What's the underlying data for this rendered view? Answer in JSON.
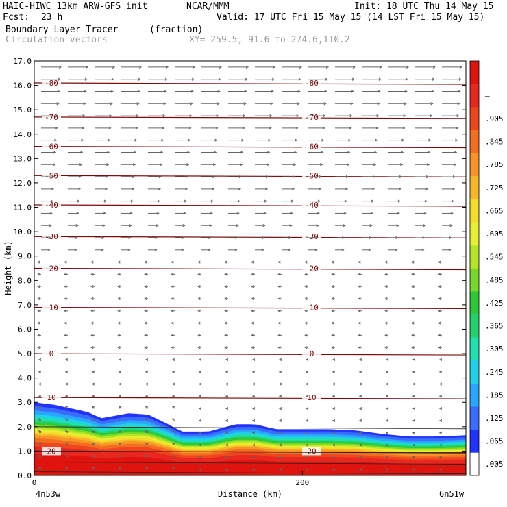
{
  "header": {
    "model": "HAIC-HIWC 13km ARW-GFS init",
    "org": "NCAR/MMM",
    "init": "Init: 18 UTC Thu 14 May 15",
    "fcst_label": "Fcst:",
    "fcst_value": "23 h",
    "valid": "Valid: 17 UTC Fri 15 May 15 (14 LST Fri 15 May 15)",
    "field": "Boundary Layer Tracer",
    "field_units": "(fraction)",
    "overlay": "Circulation vectors",
    "xy": "XY= 259.5, 91.6 to 274.6,110.2"
  },
  "chart_data": {
    "type": "heatmap",
    "title": "Boundary Layer Tracer",
    "units": "(fraction)",
    "xlabel": "Distance (km)",
    "ylabel": "Height (km)",
    "xlim": [
      0,
      322
    ],
    "ylim": [
      0,
      17
    ],
    "x_ticks": [
      "0",
      "200"
    ],
    "y_ticks": [
      "0.0",
      "1.0",
      "2.0",
      "3.0",
      "4.0",
      "5.0",
      "6.0",
      "7.0",
      "8.0",
      "9.0",
      "10.0",
      "11.0",
      "12.0",
      "13.0",
      "14.0",
      "15.0",
      "16.0",
      "17.0"
    ],
    "endpoints": {
      "left": "4n53w",
      "right": "6n51w"
    },
    "colorbar": {
      "labels": [
        ".005",
        ".065",
        ".125",
        ".185",
        ".245",
        ".305",
        ".365",
        ".425",
        ".485",
        ".545",
        ".605",
        ".665",
        ".725",
        ".785",
        ".845",
        ".905",
        "–"
      ],
      "colors": [
        "#ffffff",
        "#2233ff",
        "#3a6cff",
        "#2aa6ff",
        "#1fd2e8",
        "#20e0b0",
        "#22d26a",
        "#2dc837",
        "#78d828",
        "#b4e628",
        "#e6f030",
        "#f4dc2a",
        "#f6b829",
        "#f69426",
        "#f46e22",
        "#f0461e",
        "#e8281e",
        "#e0140f"
      ]
    },
    "temperature_contours": [
      {
        "value": 20,
        "label": "20",
        "height_km": 1.0
      },
      {
        "value": 10,
        "label": "10",
        "height_km": 3.2
      },
      {
        "value": 0,
        "label": "0",
        "height_km": 5.0
      },
      {
        "value": -10,
        "label": "-10",
        "height_km": 6.9
      },
      {
        "value": -20,
        "label": "-20",
        "height_km": 8.5
      },
      {
        "value": -30,
        "label": "-30",
        "height_km": 9.8
      },
      {
        "value": -40,
        "label": "-40",
        "height_km": 11.1
      },
      {
        "value": -50,
        "label": "-50",
        "height_km": 12.3
      },
      {
        "value": -60,
        "label": "-60",
        "height_km": 13.5
      },
      {
        "value": -70,
        "label": "-70",
        "height_km": 14.7
      },
      {
        "value": -80,
        "label": "-80",
        "height_km": 16.1
      }
    ],
    "boundary_layer_top": {
      "x_km": [
        0,
        15,
        40,
        50,
        70,
        85,
        100,
        110,
        130,
        150,
        165,
        180,
        200,
        220,
        240,
        260,
        280,
        300,
        322
      ],
      "height_km": [
        3.0,
        2.9,
        2.6,
        2.35,
        2.55,
        2.5,
        2.1,
        1.8,
        1.8,
        2.1,
        2.1,
        1.9,
        1.9,
        1.9,
        1.85,
        1.7,
        1.6,
        1.6,
        1.65
      ]
    },
    "legend_placement": "right",
    "grid": false
  }
}
